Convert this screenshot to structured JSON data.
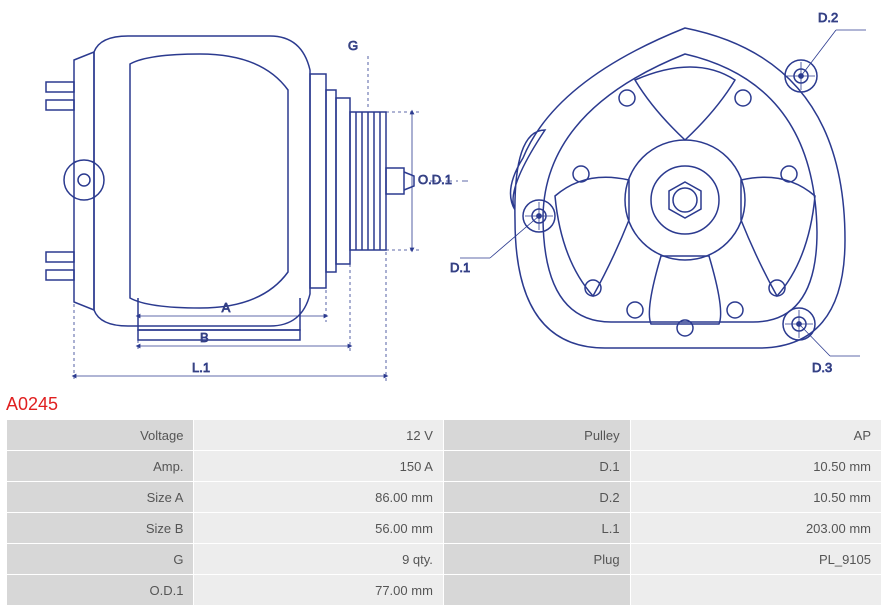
{
  "part_code": "A0245",
  "diagram": {
    "type": "engineering-drawing",
    "stroke_color": "#2b3a8f",
    "stroke_width": 1.5,
    "thin_stroke_width": 0.8,
    "label_color": "#555555",
    "label_fontsize": 13,
    "background_color": "#ffffff",
    "dim_labels": {
      "G": "G",
      "OD1": "O.D.1",
      "A": "A",
      "B": "B",
      "L1": "L.1",
      "D1": "D.1",
      "D2": "D.2",
      "D3": "D.3"
    }
  },
  "specs_left": [
    {
      "label": "Voltage",
      "value": "12 V"
    },
    {
      "label": "Amp.",
      "value": "150 A"
    },
    {
      "label": "Size A",
      "value": "86.00 mm"
    },
    {
      "label": "Size B",
      "value": "56.00 mm"
    },
    {
      "label": "G",
      "value": "9 qty."
    },
    {
      "label": "O.D.1",
      "value": "77.00 mm"
    }
  ],
  "specs_right": [
    {
      "label": "Pulley",
      "value": "AP"
    },
    {
      "label": "D.1",
      "value": "10.50 mm"
    },
    {
      "label": "D.2",
      "value": "10.50 mm"
    },
    {
      "label": "L.1",
      "value": "203.00 mm"
    },
    {
      "label": "Plug",
      "value": "PL_9105"
    },
    {
      "label": "",
      "value": ""
    }
  ],
  "table_style": {
    "label_bg": "#d7d7d7",
    "value_bg": "#ededed",
    "border_color": "#ffffff",
    "font_color": "#555555",
    "fontsize": 13
  }
}
